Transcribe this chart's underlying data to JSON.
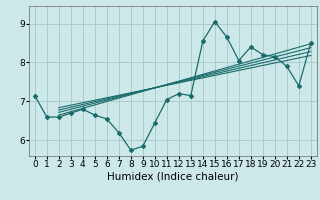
{
  "xlabel": "Humidex (Indice chaleur)",
  "bg_color": "#cce8e8",
  "grid_color": "#aacccc",
  "line_color": "#1a6b6b",
  "xlim": [
    -0.5,
    23.5
  ],
  "ylim": [
    5.6,
    9.45
  ],
  "yticks": [
    6,
    7,
    8,
    9
  ],
  "xticks": [
    0,
    1,
    2,
    3,
    4,
    5,
    6,
    7,
    8,
    9,
    10,
    11,
    12,
    13,
    14,
    15,
    16,
    17,
    18,
    19,
    20,
    21,
    22,
    23
  ],
  "main_x": [
    0,
    1,
    2,
    3,
    4,
    5,
    6,
    7,
    8,
    9,
    10,
    11,
    12,
    13,
    14,
    15,
    16,
    17,
    18,
    19,
    20,
    21,
    22,
    23
  ],
  "main_y": [
    7.15,
    6.6,
    6.6,
    6.7,
    6.8,
    6.65,
    6.55,
    6.2,
    5.75,
    5.85,
    6.45,
    7.05,
    7.2,
    7.15,
    8.55,
    9.05,
    8.65,
    8.05,
    8.4,
    8.2,
    8.15,
    7.9,
    7.4,
    8.5
  ],
  "trend_lines": [
    {
      "x0": 2,
      "y0": 6.65,
      "x1": 23,
      "y1": 8.48
    },
    {
      "x0": 2,
      "y0": 6.72,
      "x1": 23,
      "y1": 8.38
    },
    {
      "x0": 2,
      "y0": 6.78,
      "x1": 23,
      "y1": 8.28
    },
    {
      "x0": 2,
      "y0": 6.84,
      "x1": 23,
      "y1": 8.18
    }
  ],
  "tick_fontsize": 6.5,
  "xlabel_fontsize": 7.5
}
